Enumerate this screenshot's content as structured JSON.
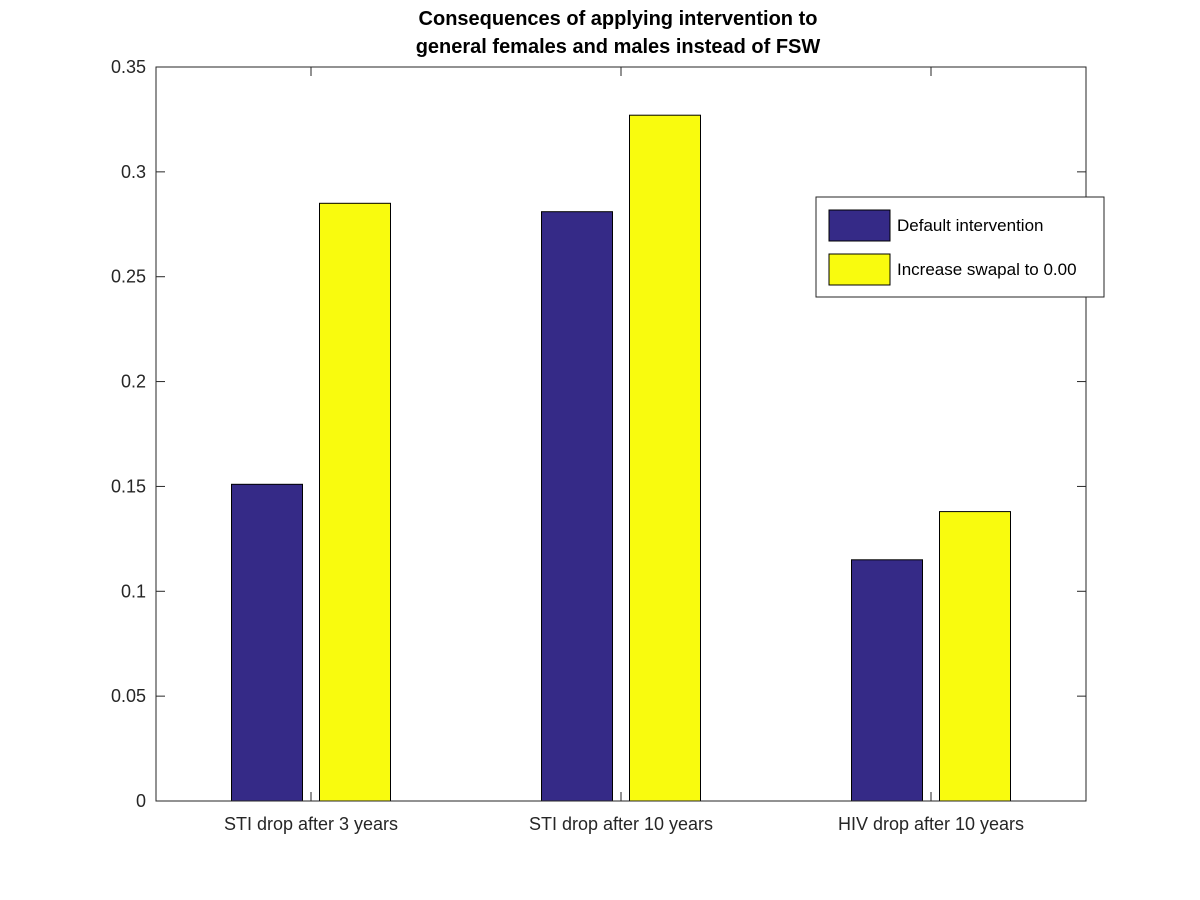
{
  "chart_data": {
    "type": "bar",
    "title": [
      "Consequences of applying intervention to",
      "general females and males instead of FSW"
    ],
    "xlabel": "",
    "ylabel": "",
    "categories": [
      "STI drop after 3 years",
      "STI drop after 10 years",
      "HIV drop after 10 years"
    ],
    "series": [
      {
        "name": "Default intervention",
        "values": [
          0.151,
          0.281,
          0.115
        ],
        "color": "#352a87"
      },
      {
        "name": "Increase swapal to 0.00",
        "values": [
          0.285,
          0.327,
          0.138
        ],
        "color": "#f9fb0e"
      }
    ],
    "ylim": [
      0,
      0.35
    ],
    "yticks": [
      "0",
      "0.05",
      "0.1",
      "0.15",
      "0.2",
      "0.25",
      "0.3",
      "0.35"
    ],
    "grid": false,
    "legend_position": "top-right"
  }
}
